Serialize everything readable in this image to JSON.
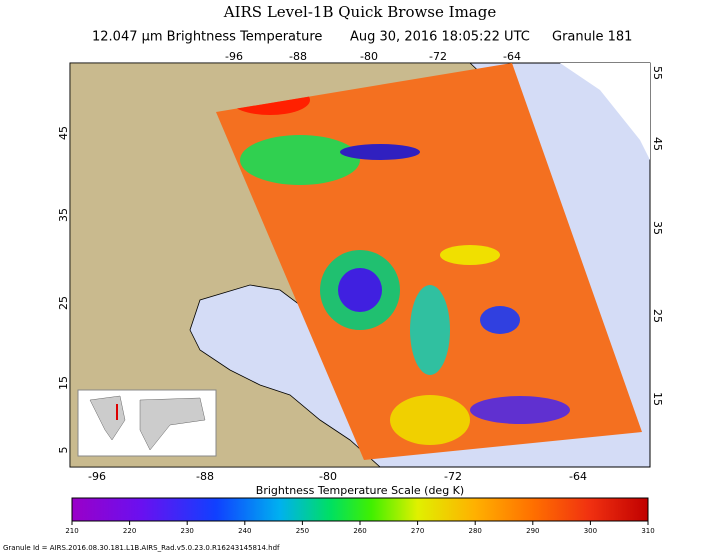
{
  "header": {
    "title": "AIRS Level-1B Quick Browse Image",
    "band": "12.047 μm Brightness Temperature",
    "time": "Aug 30, 2016 18:05:22 UTC",
    "granule": "Granule 181"
  },
  "map": {
    "lon_ticks_top": [
      -96,
      -88,
      -80,
      -72,
      -64
    ],
    "lon_ticks_bottom": [
      -96,
      -88,
      -80,
      -72,
      -64
    ],
    "lat_ticks_left": [
      45,
      35,
      25,
      15,
      5
    ],
    "lat_ticks_right": [
      55,
      45,
      35,
      25,
      15
    ]
  },
  "colorbar": {
    "label": "Brightness Temperature Scale (deg K)",
    "ticks": [
      210,
      220,
      230,
      240,
      250,
      260,
      270,
      280,
      290,
      300,
      310
    ]
  },
  "footer": {
    "granule_id": "Granule Id = AIRS.2016.08.30.181.L1B.AIRS_Rad.v5.0.23.0.R16243145814.hdf"
  }
}
